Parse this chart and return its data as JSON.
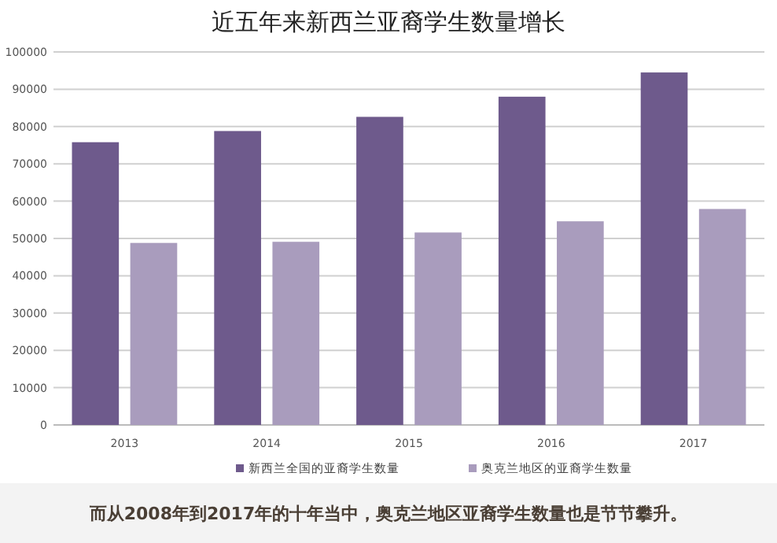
{
  "chart_data": {
    "type": "bar",
    "title": "近五年来新西兰亚裔学生数量增长",
    "categories": [
      "2013",
      "2014",
      "2015",
      "2016",
      "2017"
    ],
    "series": [
      {
        "name": "新西兰全国的亚裔学生数量",
        "color": "#6e5a8c",
        "values": [
          75800,
          78800,
          82600,
          88000,
          94500
        ]
      },
      {
        "name": "奥克兰地区的亚裔学生数量",
        "color": "#a99cbd",
        "values": [
          48800,
          49100,
          51600,
          54600,
          57900
        ]
      }
    ],
    "ylim": [
      0,
      100000
    ],
    "yticks": [
      0,
      10000,
      20000,
      30000,
      40000,
      50000,
      60000,
      70000,
      80000,
      90000,
      100000
    ],
    "grid": "y",
    "legend": "bottom",
    "annotations": [
      "而从2008年到2017年的十年当中，奥克兰地区亚裔学生数量也是节节攀升。"
    ]
  }
}
